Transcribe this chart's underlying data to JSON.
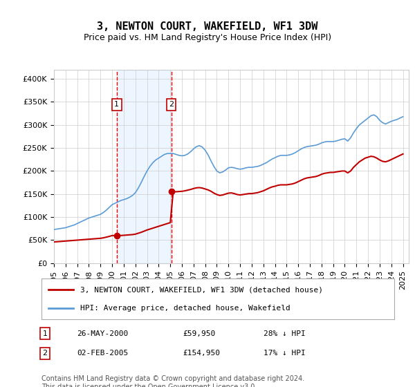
{
  "title": "3, NEWTON COURT, WAKEFIELD, WF1 3DW",
  "subtitle": "Price paid vs. HM Land Registry's House Price Index (HPI)",
  "yticks": [
    0,
    50000,
    100000,
    150000,
    200000,
    250000,
    300000,
    350000,
    400000
  ],
  "ylim": [
    0,
    420000
  ],
  "xlim_start": 1995.0,
  "xlim_end": 2025.5,
  "sale1_x": 2000.4,
  "sale1_y": 59950,
  "sale1_label": "1",
  "sale1_date": "26-MAY-2000",
  "sale1_price": "£59,950",
  "sale1_hpi": "28% ↓ HPI",
  "sale2_x": 2005.08,
  "sale2_y": 154950,
  "sale2_label": "2",
  "sale2_date": "02-FEB-2005",
  "sale2_price": "£154,950",
  "sale2_hpi": "17% ↓ HPI",
  "hpi_line_color": "#5b9bd5",
  "price_line_color": "#c00000",
  "sale_marker_color": "#c00000",
  "vline_color": "#ff0000",
  "vline_shade": "#ddeeff",
  "legend_label_price": "3, NEWTON COURT, WAKEFIELD, WF1 3DW (detached house)",
  "legend_label_hpi": "HPI: Average price, detached house, Wakefield",
  "footer": "Contains HM Land Registry data © Crown copyright and database right 2024.\nThis data is licensed under the Open Government Licence v3.0.",
  "background_color": "#ffffff",
  "grid_color": "#cccccc",
  "title_fontsize": 11,
  "subtitle_fontsize": 9,
  "tick_fontsize": 8,
  "legend_fontsize": 8,
  "footer_fontsize": 7,
  "hpi_data_x": [
    1995.0,
    1995.25,
    1995.5,
    1995.75,
    1996.0,
    1996.25,
    1996.5,
    1996.75,
    1997.0,
    1997.25,
    1997.5,
    1997.75,
    1998.0,
    1998.25,
    1998.5,
    1998.75,
    1999.0,
    1999.25,
    1999.5,
    1999.75,
    2000.0,
    2000.25,
    2000.5,
    2000.75,
    2001.0,
    2001.25,
    2001.5,
    2001.75,
    2002.0,
    2002.25,
    2002.5,
    2002.75,
    2003.0,
    2003.25,
    2003.5,
    2003.75,
    2004.0,
    2004.25,
    2004.5,
    2004.75,
    2005.0,
    2005.25,
    2005.5,
    2005.75,
    2006.0,
    2006.25,
    2006.5,
    2006.75,
    2007.0,
    2007.25,
    2007.5,
    2007.75,
    2008.0,
    2008.25,
    2008.5,
    2008.75,
    2009.0,
    2009.25,
    2009.5,
    2009.75,
    2010.0,
    2010.25,
    2010.5,
    2010.75,
    2011.0,
    2011.25,
    2011.5,
    2011.75,
    2012.0,
    2012.25,
    2012.5,
    2012.75,
    2013.0,
    2013.25,
    2013.5,
    2013.75,
    2014.0,
    2014.25,
    2014.5,
    2014.75,
    2015.0,
    2015.25,
    2015.5,
    2015.75,
    2016.0,
    2016.25,
    2016.5,
    2016.75,
    2017.0,
    2017.25,
    2017.5,
    2017.75,
    2018.0,
    2018.25,
    2018.5,
    2018.75,
    2019.0,
    2019.25,
    2019.5,
    2019.75,
    2020.0,
    2020.25,
    2020.5,
    2020.75,
    2021.0,
    2021.25,
    2021.5,
    2021.75,
    2022.0,
    2022.25,
    2022.5,
    2022.75,
    2023.0,
    2023.25,
    2023.5,
    2023.75,
    2024.0,
    2024.25,
    2024.5,
    2024.75,
    2025.0
  ],
  "hpi_data_y": [
    73000,
    74000,
    75000,
    76000,
    77000,
    79000,
    81000,
    83000,
    86000,
    89000,
    92000,
    95000,
    98000,
    100000,
    102000,
    104000,
    106000,
    110000,
    115000,
    121000,
    127000,
    130000,
    133000,
    136000,
    138000,
    140000,
    143000,
    147000,
    153000,
    163000,
    175000,
    188000,
    200000,
    210000,
    218000,
    224000,
    228000,
    232000,
    236000,
    238000,
    238000,
    238000,
    236000,
    234000,
    233000,
    234000,
    237000,
    242000,
    248000,
    253000,
    255000,
    252000,
    245000,
    235000,
    222000,
    210000,
    200000,
    196000,
    198000,
    202000,
    207000,
    208000,
    207000,
    205000,
    204000,
    205000,
    207000,
    208000,
    208000,
    209000,
    210000,
    212000,
    215000,
    218000,
    222000,
    226000,
    229000,
    232000,
    234000,
    234000,
    234000,
    235000,
    237000,
    240000,
    244000,
    248000,
    251000,
    253000,
    254000,
    255000,
    256000,
    258000,
    261000,
    263000,
    264000,
    264000,
    264000,
    265000,
    267000,
    269000,
    270000,
    265000,
    272000,
    283000,
    292000,
    300000,
    305000,
    310000,
    315000,
    320000,
    322000,
    318000,
    310000,
    305000,
    302000,
    305000,
    308000,
    310000,
    312000,
    315000,
    318000
  ],
  "price_data_x": [
    1995.0,
    1995.25,
    1995.5,
    1995.75,
    1996.0,
    1996.25,
    1996.5,
    1996.75,
    1997.0,
    1997.25,
    1997.5,
    1997.75,
    1998.0,
    1998.25,
    1998.5,
    1998.75,
    1999.0,
    1999.25,
    1999.5,
    1999.75,
    2000.0,
    2000.25,
    2000.5,
    2000.75,
    2001.0,
    2001.25,
    2001.5,
    2001.75,
    2002.0,
    2002.25,
    2002.5,
    2002.75,
    2003.0,
    2003.25,
    2003.5,
    2003.75,
    2004.0,
    2004.25,
    2004.5,
    2004.75,
    2005.0,
    2005.25,
    2005.5,
    2005.75,
    2006.0,
    2006.25,
    2006.5,
    2006.75,
    2007.0,
    2007.25,
    2007.5,
    2007.75,
    2008.0,
    2008.25,
    2008.5,
    2008.75,
    2009.0,
    2009.25,
    2009.5,
    2009.75,
    2010.0,
    2010.25,
    2010.5,
    2010.75,
    2011.0,
    2011.25,
    2011.5,
    2011.75,
    2012.0,
    2012.25,
    2012.5,
    2012.75,
    2013.0,
    2013.25,
    2013.5,
    2013.75,
    2014.0,
    2014.25,
    2014.5,
    2014.75,
    2015.0,
    2015.25,
    2015.5,
    2015.75,
    2016.0,
    2016.25,
    2016.5,
    2016.75,
    2017.0,
    2017.25,
    2017.5,
    2017.75,
    2018.0,
    2018.25,
    2018.5,
    2018.75,
    2019.0,
    2019.25,
    2019.5,
    2019.75,
    2020.0,
    2020.25,
    2020.5,
    2020.75,
    2021.0,
    2021.25,
    2021.5,
    2021.75,
    2022.0,
    2022.25,
    2022.5,
    2022.75,
    2023.0,
    2023.25,
    2023.5,
    2023.75,
    2024.0,
    2024.25,
    2024.5,
    2024.75,
    2025.0
  ],
  "price_data_y": [
    46000,
    46500,
    47000,
    47500,
    48000,
    48500,
    49000,
    49500,
    50000,
    50500,
    51000,
    51500,
    52000,
    52500,
    53000,
    53500,
    54000,
    55000,
    56500,
    58000,
    59950,
    59950,
    59950,
    60000,
    60500,
    61000,
    61500,
    62000,
    63000,
    65000,
    67000,
    69500,
    72000,
    74000,
    76000,
    78000,
    80000,
    82000,
    84000,
    86000,
    88000,
    154950,
    155000,
    155500,
    156000,
    157000,
    158500,
    160000,
    162000,
    163500,
    164000,
    163000,
    161000,
    159000,
    156000,
    152000,
    149000,
    147000,
    148000,
    150000,
    152000,
    152500,
    151000,
    149000,
    148000,
    149000,
    150000,
    151000,
    151000,
    152000,
    153000,
    155000,
    157000,
    160000,
    163000,
    165500,
    167000,
    169000,
    170000,
    170000,
    170000,
    171000,
    172000,
    174000,
    177000,
    180000,
    183000,
    185000,
    186000,
    187000,
    188000,
    190000,
    193000,
    195000,
    196000,
    197000,
    197000,
    198000,
    199000,
    200000,
    200000,
    196000,
    200000,
    208000,
    214000,
    220000,
    224000,
    228000,
    230000,
    232000,
    231000,
    228000,
    224000,
    221000,
    220000,
    222000,
    225000,
    228000,
    231000,
    234000,
    237000
  ]
}
